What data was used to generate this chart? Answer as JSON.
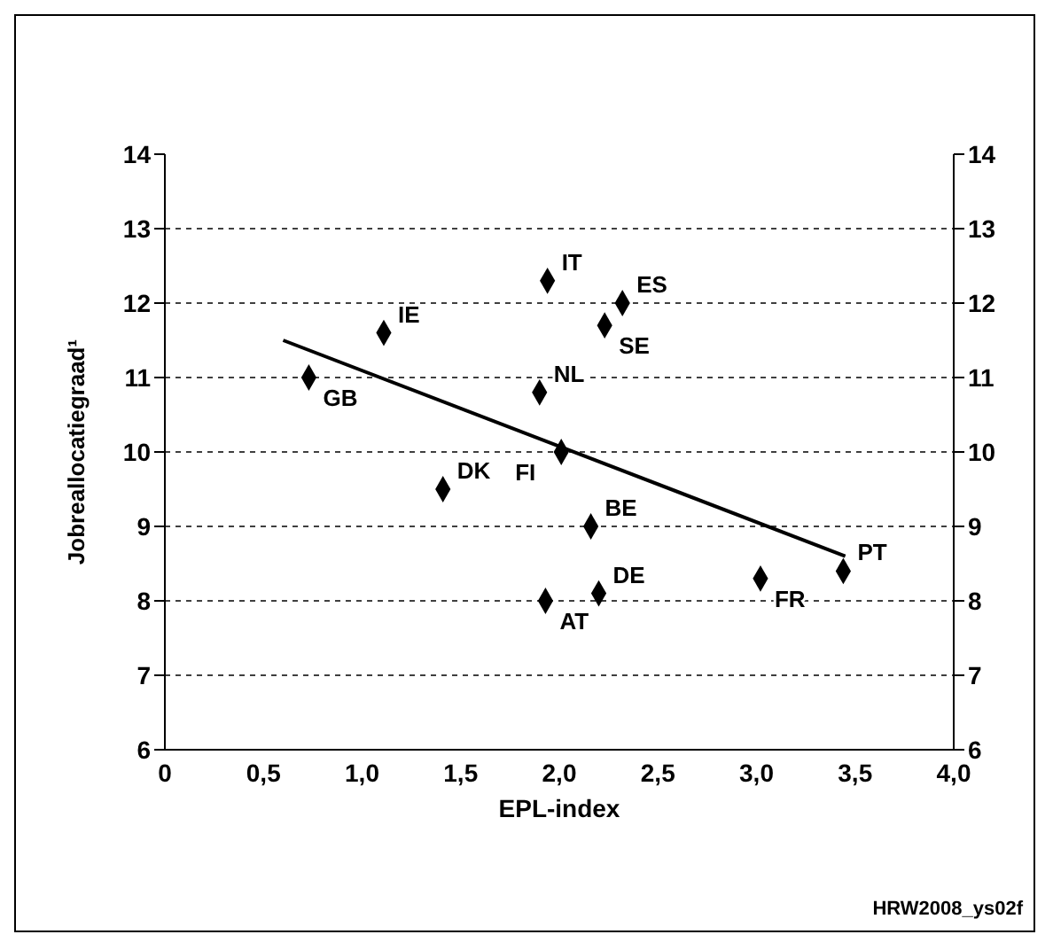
{
  "chart_data": {
    "type": "scatter",
    "xlabel": "EPL-index",
    "ylabel": "Jobreallocatiegraad¹",
    "series": [
      {
        "color": "#000000",
        "x": [
          0.73,
          1.11,
          1.94,
          2.32,
          2.23,
          1.9,
          2.01,
          1.41,
          2.16,
          1.93,
          2.2,
          3.02,
          3.44
        ],
        "values": [
          11.0,
          11.6,
          12.3,
          12.0,
          11.7,
          10.8,
          10.0,
          9.5,
          9.0,
          8.0,
          8.1,
          8.3,
          8.4
        ]
      },
      {
        "type": "line",
        "color": "#000000",
        "marker": "none",
        "x": [
          0.6,
          3.45
        ],
        "values": [
          11.5,
          8.6
        ]
      }
    ],
    "xlim": [
      0,
      4
    ],
    "xticks": [
      0,
      {
        "value": 0.5,
        "label": "0,5"
      },
      {
        "value": 1,
        "label": "1,0"
      },
      {
        "value": 1.5,
        "label": "1,5"
      },
      {
        "value": 2,
        "label": "2,0"
      },
      {
        "value": 2.5,
        "label": "2,5"
      },
      {
        "value": 3,
        "label": "3,0"
      },
      {
        "value": 3.5,
        "label": "3,5"
      },
      {
        "value": 4,
        "label": "4,0"
      }
    ],
    "ylim": [
      6,
      14
    ],
    "yticks": [
      6,
      7,
      8,
      9,
      10,
      11,
      12,
      13,
      14
    ],
    "y2lim": [
      6,
      14
    ],
    "y2ticks": [
      6,
      7,
      8,
      9,
      10,
      11,
      12,
      13,
      14
    ],
    "grid": "y",
    "marker": "diamond",
    "annotations": [
      {
        "text": "GB",
        "x": 0.73,
        "y": 11.0
      },
      {
        "text": "IE",
        "x": 1.11,
        "y": 11.6
      },
      {
        "text": "IT",
        "x": 1.94,
        "y": 12.3
      },
      {
        "text": "ES",
        "x": 2.32,
        "y": 12.0
      },
      {
        "text": "SE",
        "x": 2.23,
        "y": 11.7
      },
      {
        "text": "NL",
        "x": 1.9,
        "y": 10.8
      },
      {
        "text": "FI",
        "x": 2.01,
        "y": 10.0
      },
      {
        "text": "DK",
        "x": 1.41,
        "y": 9.5
      },
      {
        "text": "BE",
        "x": 2.16,
        "y": 9.0
      },
      {
        "text": "AT",
        "x": 1.93,
        "y": 8.0
      },
      {
        "text": "DE",
        "x": 2.2,
        "y": 8.1
      },
      {
        "text": "FR",
        "x": 3.02,
        "y": 8.3
      },
      {
        "text": "PT",
        "x": 3.44,
        "y": 8.4
      },
      "HRW2008_ys02f"
    ]
  }
}
